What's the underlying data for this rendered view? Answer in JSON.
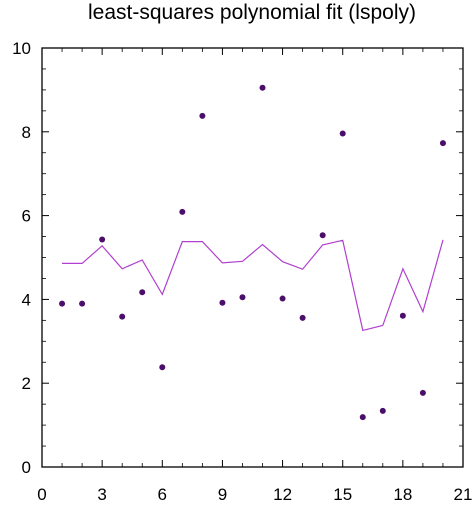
{
  "chart_data": {
    "type": "scatter",
    "title": "least-squares polynomial fit (lspoly)",
    "xlabel": "",
    "ylabel": "",
    "xlim": [
      0,
      21
    ],
    "ylim": [
      0,
      10
    ],
    "x_ticks": [
      0,
      3,
      6,
      9,
      12,
      15,
      18,
      21
    ],
    "y_ticks": [
      0,
      2,
      4,
      6,
      8,
      10
    ],
    "grid": false,
    "series": [
      {
        "kind": "points",
        "color": "#4b0f6b",
        "x": [
          1,
          2,
          3,
          4,
          5,
          6,
          7,
          8,
          9,
          10,
          11,
          12,
          13,
          14,
          15,
          16,
          17,
          18,
          19,
          20
        ],
        "y": [
          3.9,
          3.9,
          5.43,
          3.59,
          4.17,
          2.38,
          6.09,
          8.38,
          3.92,
          4.05,
          9.05,
          4.02,
          3.56,
          5.53,
          7.96,
          1.19,
          1.34,
          3.61,
          1.77,
          7.73
        ]
      },
      {
        "kind": "line",
        "color": "#b13fcf",
        "x": [
          1,
          2,
          3,
          4,
          5,
          6,
          7,
          8,
          9,
          10,
          11,
          12,
          13,
          14,
          15,
          16,
          17,
          18,
          19,
          20
        ],
        "y": [
          4.86,
          4.86,
          5.28,
          4.73,
          4.94,
          4.12,
          5.38,
          5.38,
          4.87,
          4.91,
          5.31,
          4.9,
          4.72,
          5.3,
          5.41,
          3.26,
          3.38,
          4.73,
          3.71,
          5.42
        ]
      }
    ]
  }
}
